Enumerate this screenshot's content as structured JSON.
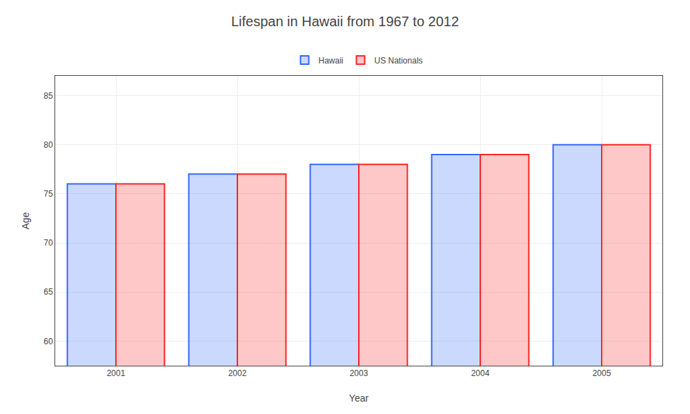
{
  "chart_data": {
    "type": "bar",
    "title": "Lifespan in Hawaii from 1967 to 2012",
    "x_label": "Year",
    "y_label": "Age",
    "categories": [
      "2001",
      "2002",
      "2003",
      "2004",
      "2005"
    ],
    "series": [
      {
        "name": "Hawaii",
        "color": "#3366ff",
        "values": [
          76.0,
          77.0,
          78.0,
          79.0,
          80.0
        ]
      },
      {
        "name": "US Nationals",
        "color": "#ff2222",
        "values": [
          76.0,
          77.0,
          78.0,
          79.0,
          80.0
        ]
      }
    ],
    "ylim": [
      57.5,
      87
    ],
    "yticks": [
      60,
      65,
      70,
      75,
      80,
      85
    ],
    "grid": true,
    "legend": "top"
  }
}
